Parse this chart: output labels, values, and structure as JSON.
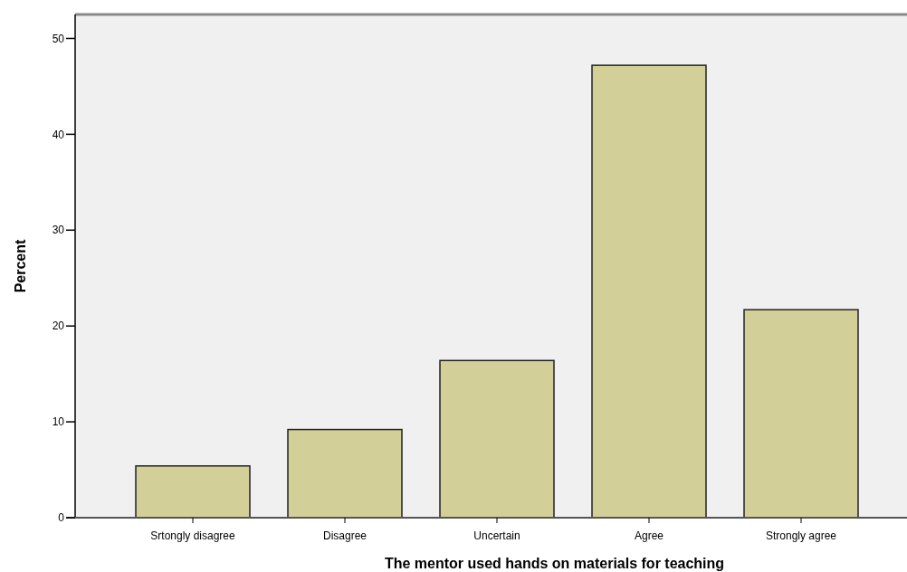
{
  "chart_data": {
    "type": "bar",
    "xlabel": "The mentor used hands on materials for teaching",
    "ylabel": "Percent",
    "categories": [
      "Srtongly disagree",
      "Disagree",
      "Uncertain",
      "Agree",
      "Strongly agree"
    ],
    "values": [
      5.4,
      9.2,
      16.4,
      47.2,
      21.7
    ],
    "color": "#d3cf98",
    "ylim": [
      0,
      52.5
    ],
    "yticks": [
      0,
      10,
      20,
      30,
      40,
      50
    ],
    "grid": false
  }
}
